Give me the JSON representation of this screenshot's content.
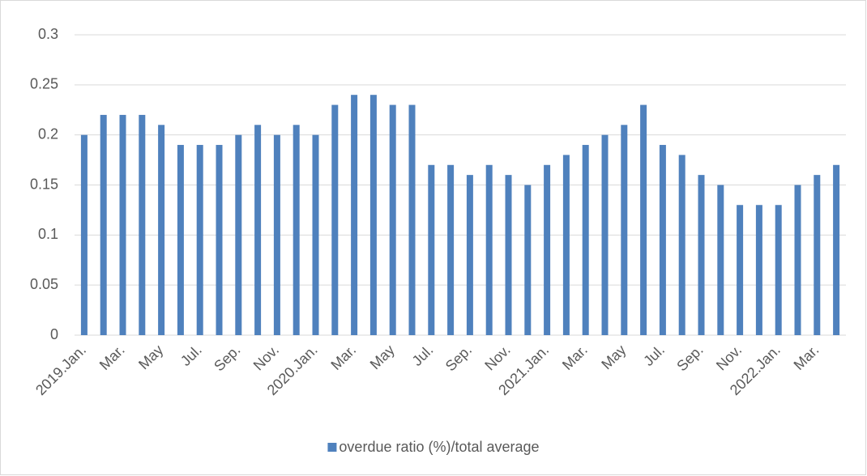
{
  "chart_data": {
    "type": "bar",
    "categories": [
      "2019.Jan.",
      null,
      "Mar.",
      null,
      "May",
      null,
      "Jul.",
      null,
      "Sep.",
      null,
      "Nov.",
      null,
      "2020.Jan.",
      null,
      "Mar.",
      null,
      "May",
      null,
      "Jul.",
      null,
      "Sep.",
      null,
      "Nov.",
      null,
      "2021.Jan.",
      null,
      "Mar.",
      null,
      "May",
      null,
      "Jul.",
      null,
      "Sep.",
      null,
      "Nov.",
      null,
      "2022.Jan.",
      null,
      "Mar.",
      null
    ],
    "series": [
      {
        "name": "overdue ratio (%)/total average",
        "color": "#4f81bd",
        "values": [
          0.2,
          0.22,
          0.22,
          0.22,
          0.21,
          0.19,
          0.19,
          0.19,
          0.2,
          0.21,
          0.2,
          0.21,
          0.2,
          0.23,
          0.24,
          0.24,
          0.23,
          0.23,
          0.17,
          0.17,
          0.16,
          0.17,
          0.16,
          0.15,
          0.17,
          0.18,
          0.19,
          0.2,
          0.21,
          0.23,
          0.19,
          0.18,
          0.16,
          0.15,
          0.13,
          0.13,
          0.13,
          0.15,
          0.16,
          0.17
        ]
      }
    ],
    "ylim": [
      0,
      0.3
    ],
    "yticks": [
      0,
      0.05,
      0.1,
      0.15,
      0.2,
      0.25,
      0.3
    ],
    "grid": true,
    "legend": "bottom"
  }
}
